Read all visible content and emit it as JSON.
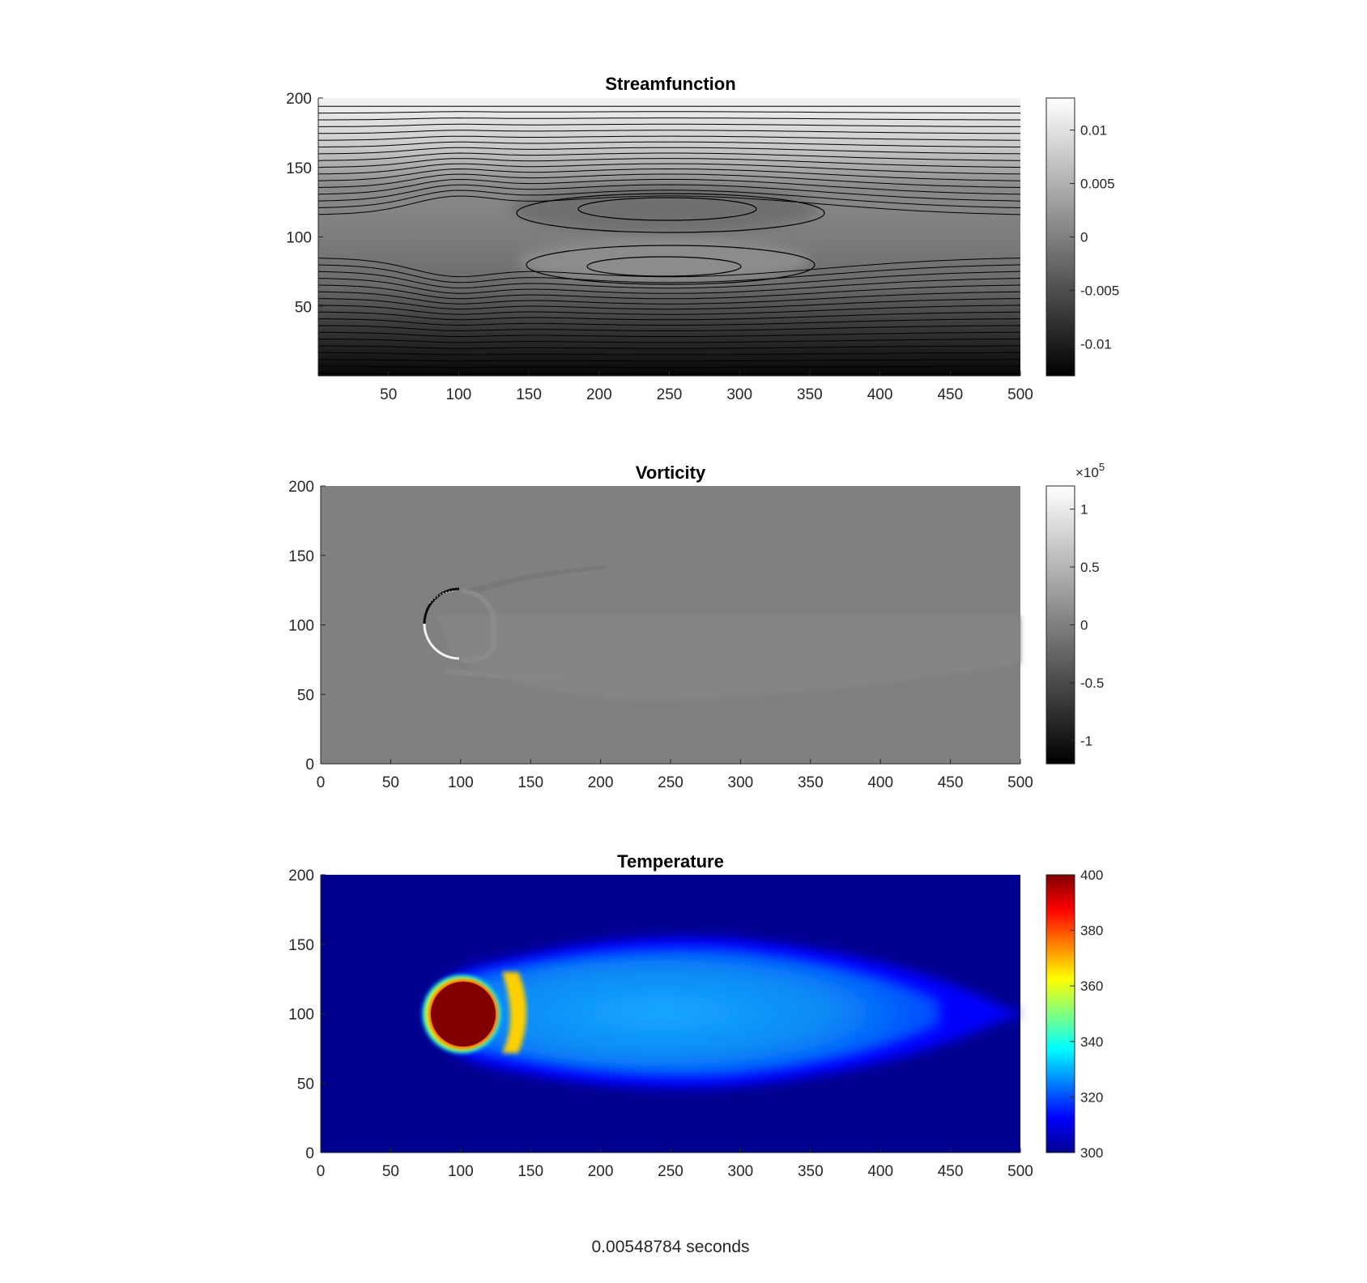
{
  "footer_text": "0.00548784 seconds",
  "chart_data": [
    {
      "type": "heatmap",
      "title": "Streamfunction",
      "xlabel": "",
      "ylabel": "",
      "xlim": [
        0,
        500
      ],
      "ylim": [
        0,
        200
      ],
      "x_ticks": [
        "50",
        "100",
        "150",
        "200",
        "250",
        "300",
        "350",
        "400",
        "450",
        "500"
      ],
      "y_ticks": [
        "50",
        "100",
        "150",
        "200"
      ],
      "colormap": "gray",
      "contours": true,
      "clim": [
        -0.013,
        0.013
      ],
      "colorbar_ticks": [
        "0.01",
        "0.005",
        "0",
        "-0.005",
        "-0.01"
      ],
      "colorbar_exponent": "",
      "obstacle": {
        "cx": 100,
        "cy": 100,
        "r": 25
      }
    },
    {
      "type": "heatmap",
      "title": "Vorticity",
      "xlabel": "",
      "ylabel": "",
      "xlim": [
        0,
        500
      ],
      "ylim": [
        0,
        200
      ],
      "x_ticks": [
        "0",
        "50",
        "100",
        "150",
        "200",
        "250",
        "300",
        "350",
        "400",
        "450",
        "500"
      ],
      "y_ticks": [
        "0",
        "50",
        "100",
        "150",
        "200"
      ],
      "colormap": "gray",
      "contours": false,
      "clim": [
        -1.2,
        1.2
      ],
      "colorbar_ticks": [
        "1",
        "0.5",
        "0",
        "-0.5",
        "-1"
      ],
      "colorbar_exponent": "×10",
      "colorbar_exponent_power": "5",
      "obstacle": {
        "cx": 100,
        "cy": 100,
        "r": 25
      }
    },
    {
      "type": "heatmap",
      "title": "Temperature",
      "xlabel": "",
      "ylabel": "",
      "xlim": [
        0,
        500
      ],
      "ylim": [
        0,
        200
      ],
      "x_ticks": [
        "0",
        "50",
        "100",
        "150",
        "200",
        "250",
        "300",
        "350",
        "400",
        "450",
        "500"
      ],
      "y_ticks": [
        "0",
        "50",
        "100",
        "150",
        "200"
      ],
      "colormap": "jet",
      "contours": false,
      "clim": [
        300,
        400
      ],
      "colorbar_ticks": [
        "400",
        "380",
        "360",
        "340",
        "320",
        "300"
      ],
      "colorbar_exponent": "",
      "obstacle": {
        "cx": 100,
        "cy": 100,
        "r": 25
      }
    }
  ]
}
